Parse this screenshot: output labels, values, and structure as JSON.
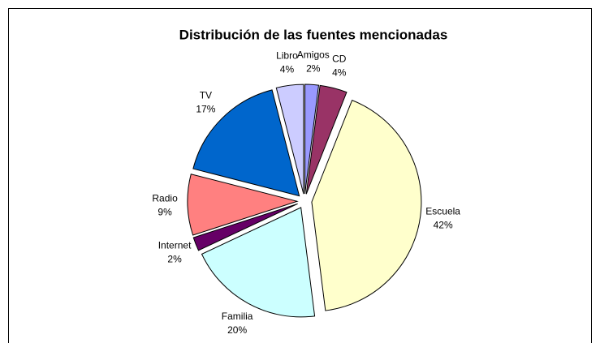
{
  "chart_data": {
    "type": "pie",
    "title": "Distribución de las fuentes mencionadas",
    "categories": [
      "Amigos",
      "CD",
      "Escuela",
      "Familia",
      "Internet",
      "Radio",
      "TV",
      "Libro"
    ],
    "values": [
      2,
      4,
      42,
      20,
      2,
      9,
      17,
      4
    ],
    "value_labels": [
      "2%",
      "4%",
      "42%",
      "20%",
      "2%",
      "9%",
      "17%",
      "4%"
    ],
    "colors": [
      "#9999ff",
      "#993366",
      "#ffffcc",
      "#ccffff",
      "#660066",
      "#ff8080",
      "#0066cc",
      "#ccccff"
    ]
  }
}
